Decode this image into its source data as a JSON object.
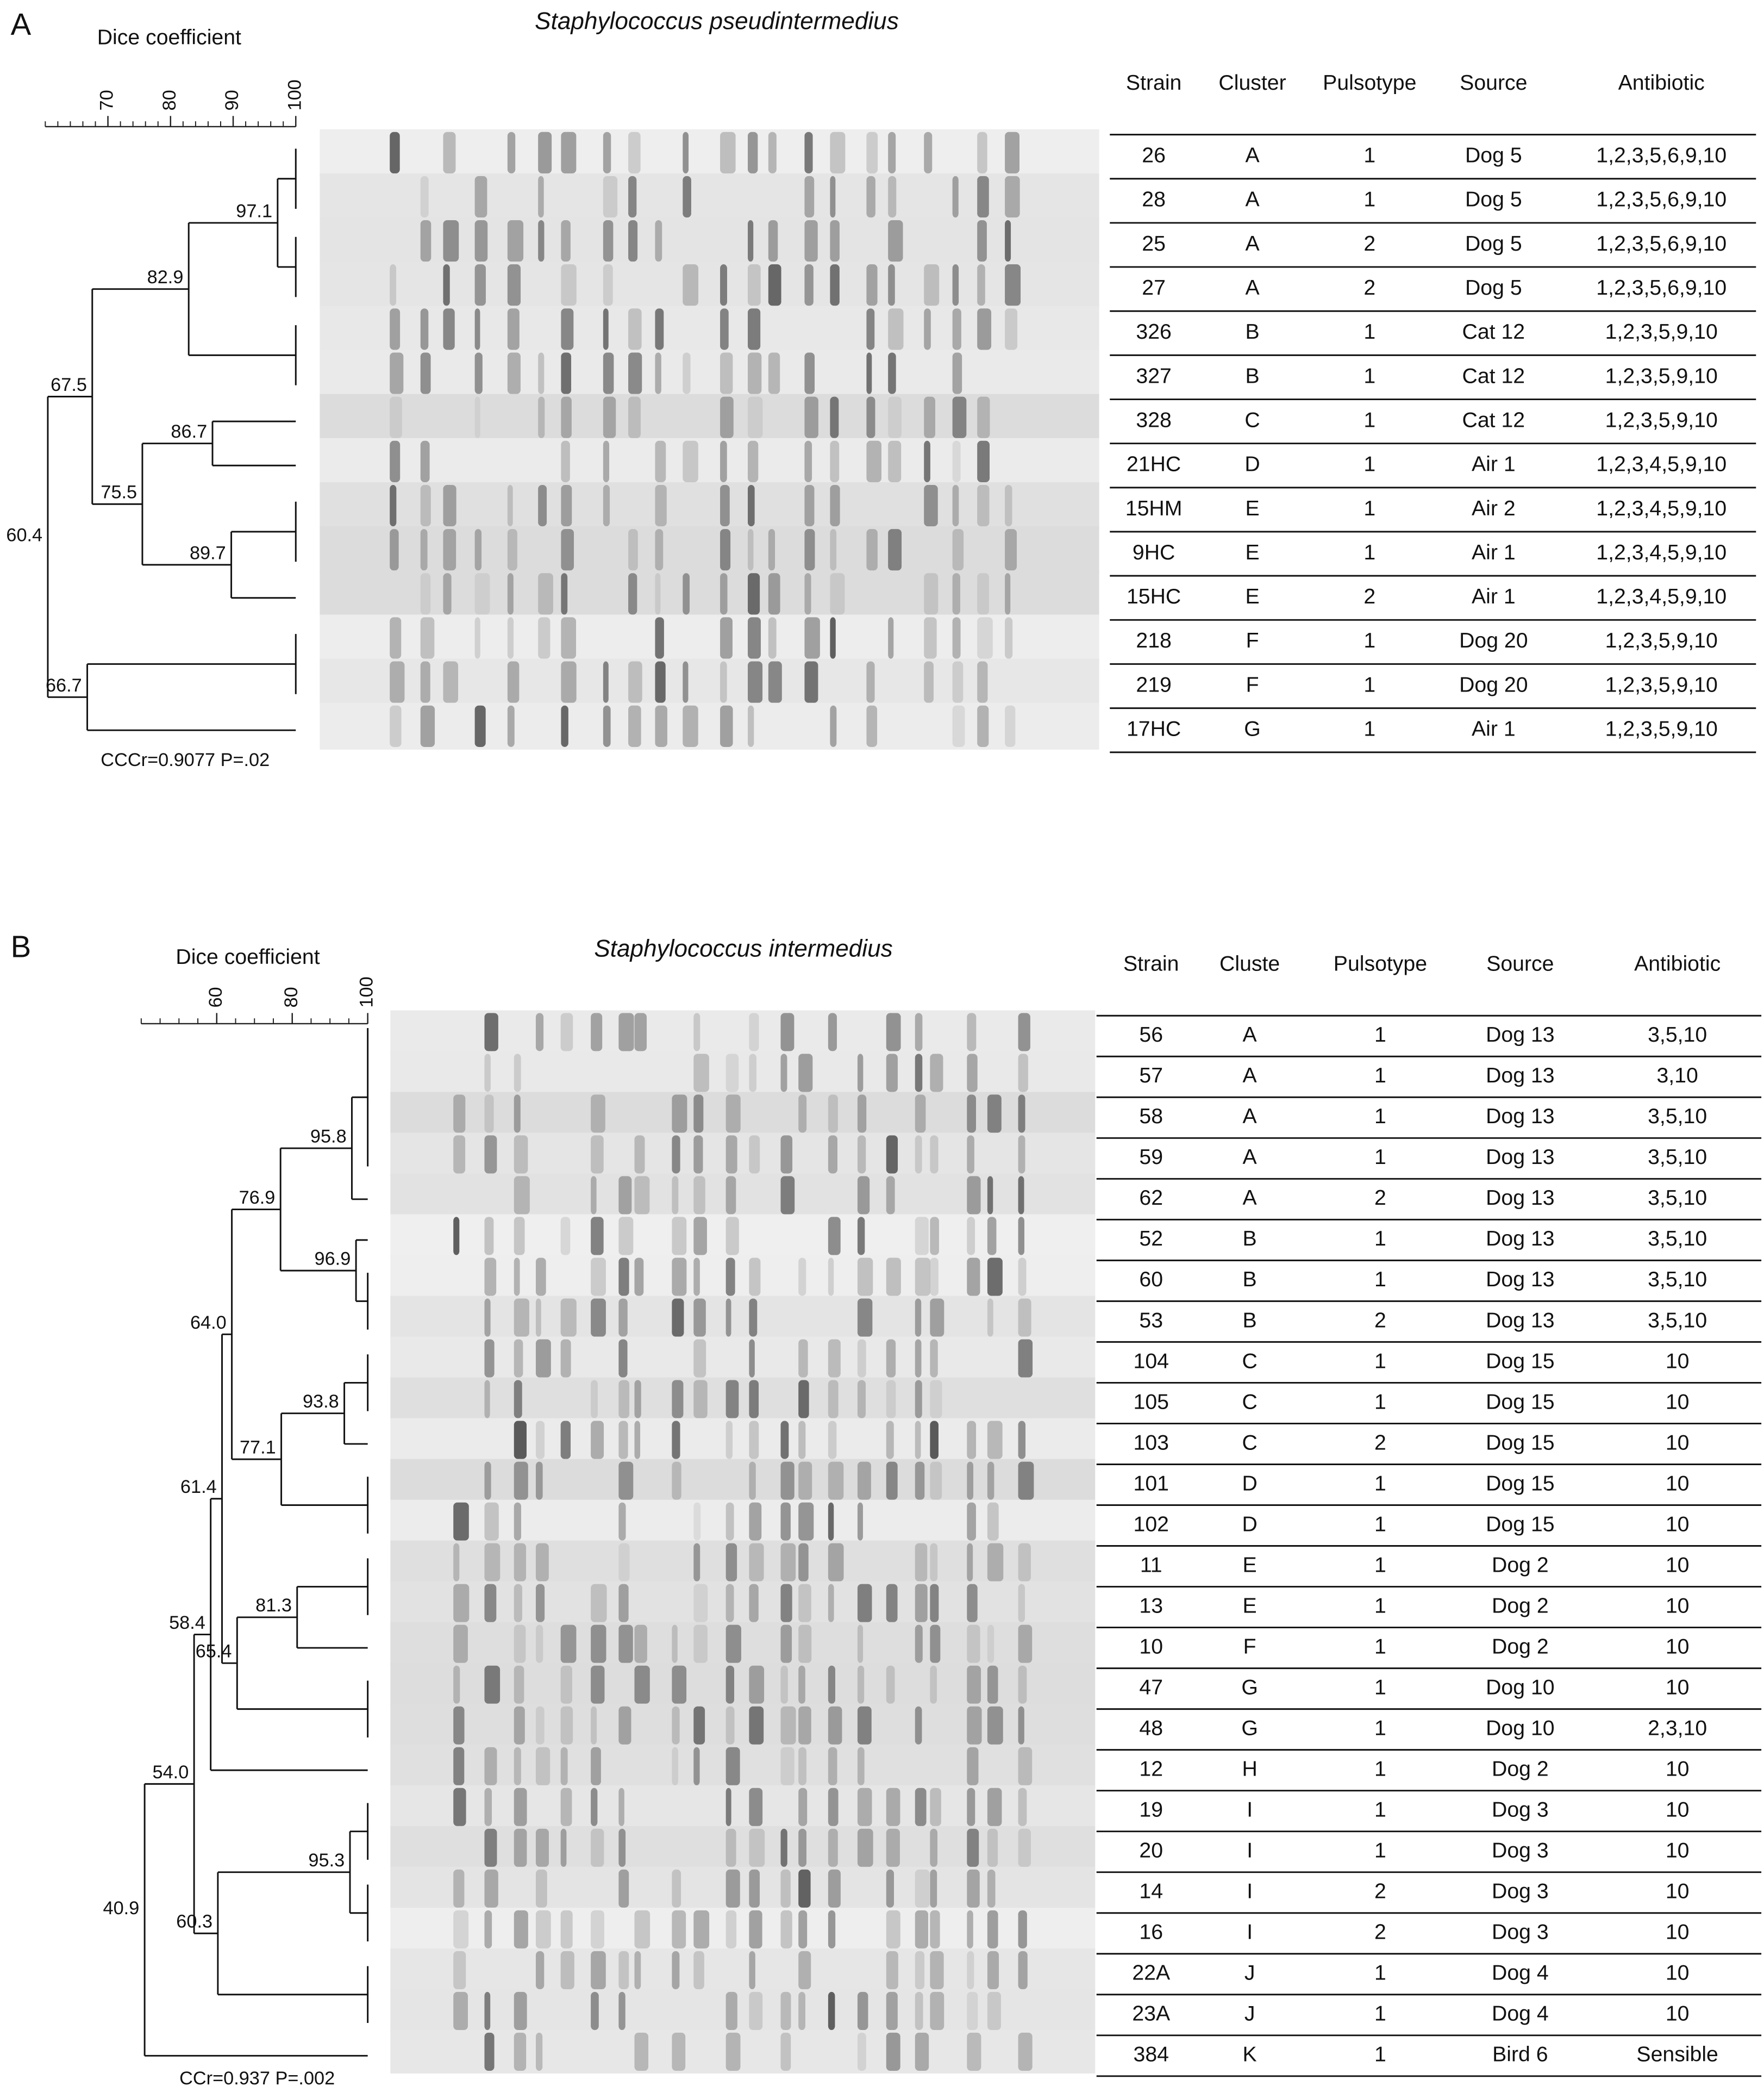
{
  "panels": [
    {
      "label": "A",
      "title": "Staphylococcus pseudintermedius",
      "axis_title": "Dice coefficient",
      "xlim": [
        60,
        100
      ],
      "xticks": [
        70,
        80,
        90,
        100
      ],
      "dendrogram": {
        "value": 60.4,
        "children": [
          {
            "value": 67.5,
            "children": [
              {
                "value": 82.9,
                "children": [
                  {
                    "value": 97.1,
                    "children": [
                      {
                        "leaves": [
                          "26",
                          "28"
                        ]
                      },
                      {
                        "leaves": [
                          "25",
                          "27"
                        ]
                      }
                    ]
                  },
                  {
                    "leaves": [
                      "326",
                      "327"
                    ]
                  }
                ]
              },
              {
                "value": 75.5,
                "children": [
                  {
                    "value": 86.7,
                    "children": [
                      {
                        "leaves": [
                          "328"
                        ]
                      },
                      {
                        "leaves": [
                          "21HC"
                        ]
                      }
                    ]
                  },
                  {
                    "value": 89.7,
                    "children": [
                      {
                        "leaves": [
                          "15HM",
                          "9HC"
                        ]
                      },
                      {
                        "leaves": [
                          "15HC"
                        ]
                      }
                    ]
                  }
                ]
              }
            ]
          },
          {
            "value": 66.7,
            "children": [
              {
                "leaves": [
                  "218",
                  "219"
                ]
              },
              {
                "leaves": [
                  "17HC"
                ]
              }
            ]
          }
        ]
      },
      "note": "CCCr=0.9077 P=.02",
      "table": {
        "header": [
          "Strain",
          "Cluster",
          "Pulsotype",
          "Source",
          "Antibiotic"
        ],
        "rows": [
          [
            "26",
            "A",
            "1",
            "Dog 5",
            "1,2,3,5,6,9,10"
          ],
          [
            "28",
            "A",
            "1",
            "Dog 5",
            "1,2,3,5,6,9,10"
          ],
          [
            "25",
            "A",
            "2",
            "Dog 5",
            "1,2,3,5,6,9,10"
          ],
          [
            "27",
            "A",
            "2",
            "Dog 5",
            "1,2,3,5,6,9,10"
          ],
          [
            "326",
            "B",
            "1",
            "Cat 12",
            "1,2,3,5,9,10"
          ],
          [
            "327",
            "B",
            "1",
            "Cat 12",
            "1,2,3,5,9,10"
          ],
          [
            "328",
            "C",
            "1",
            "Cat 12",
            "1,2,3,5,9,10"
          ],
          [
            "21HC",
            "D",
            "1",
            "Air 1",
            "1,2,3,4,5,9,10"
          ],
          [
            "15HM",
            "E",
            "1",
            "Air 2",
            "1,2,3,4,5,9,10"
          ],
          [
            "9HC",
            "E",
            "1",
            "Air 1",
            "1,2,3,4,5,9,10"
          ],
          [
            "15HC",
            "E",
            "2",
            "Air 1",
            "1,2,3,4,5,9,10"
          ],
          [
            "218",
            "F",
            "1",
            "Dog 20",
            "1,2,3,5,9,10"
          ],
          [
            "219",
            "F",
            "1",
            "Dog 20",
            "1,2,3,5,9,10"
          ],
          [
            "17HC",
            "G",
            "1",
            "Air 1",
            "1,2,3,5,9,10"
          ]
        ]
      }
    },
    {
      "label": "B",
      "title": "Staphylococcus intermedius",
      "axis_title": "Dice coefficient",
      "xlim": [
        40,
        100
      ],
      "xticks": [
        60,
        80,
        100
      ],
      "dendrogram": {
        "value": 40.9,
        "children": [
          {
            "value": {
              "value": 54,
              "label": "54.0"
            },
            "children": [
              {
                "value": 58.4,
                "children": [
                  {
                    "value": 61.4,
                    "children": [
                      {
                        "value": {
                          "value": 64,
                          "label": "64.0"
                        },
                        "children": [
                          {
                            "value": 76.9,
                            "children": [
                              {
                                "value": 95.8,
                                "children": [
                                  {
                                    "leaves": [
                                      "56",
                                      "57",
                                      "58",
                                      "59"
                                    ]
                                  },
                                  {
                                    "leaves": [
                                      "62"
                                    ]
                                  }
                                ]
                              },
                              {
                                "value": 96.9,
                                "children": [
                                  {
                                    "leaves": [
                                      "52"
                                    ]
                                  },
                                  {
                                    "leaves": [
                                      "60",
                                      "53"
                                    ]
                                  }
                                ]
                              }
                            ]
                          },
                          {
                            "value": 77.1,
                            "children": [
                              {
                                "value": 93.8,
                                "children": [
                                  {
                                    "leaves": [
                                      "104",
                                      "105"
                                    ]
                                  },
                                  {
                                    "leaves": [
                                      "103"
                                    ]
                                  }
                                ]
                              },
                              {
                                "leaves": [
                                  "101",
                                  "102"
                                ]
                              }
                            ]
                          }
                        ]
                      },
                      {
                        "value": 65.4,
                        "children": [
                          {
                            "value": 81.3,
                            "children": [
                              {
                                "leaves": [
                                  "11",
                                  "13"
                                ]
                              },
                              {
                                "leaves": [
                                  "10"
                                ]
                              }
                            ]
                          },
                          {
                            "leaves": [
                              "47",
                              "48"
                            ]
                          }
                        ]
                      }
                    ]
                  },
                  {
                    "leaves": [
                      "12"
                    ]
                  }
                ]
              },
              {
                "value": 60.3,
                "children": [
                  {
                    "value": 95.3,
                    "children": [
                      {
                        "leaves": [
                          "19",
                          "20"
                        ]
                      },
                      {
                        "leaves": [
                          "14",
                          "16"
                        ]
                      }
                    ]
                  },
                  {
                    "leaves": [
                      "22A",
                      "23A"
                    ]
                  }
                ]
              }
            ]
          },
          {
            "leaves": [
              "384"
            ]
          }
        ]
      },
      "note": "CCr=0.937 P=.002",
      "table": {
        "header": [
          "Strain",
          "Cluste",
          "Pulsotype",
          "Source",
          "Antibiotic"
        ],
        "rows": [
          [
            "56",
            "A",
            "1",
            "Dog 13",
            "3,5,10"
          ],
          [
            "57",
            "A",
            "1",
            "Dog 13",
            "3,10"
          ],
          [
            "58",
            "A",
            "1",
            "Dog 13",
            "3,5,10"
          ],
          [
            "59",
            "A",
            "1",
            "Dog 13",
            "3,5,10"
          ],
          [
            "62",
            "A",
            "2",
            "Dog 13",
            "3,5,10"
          ],
          [
            "52",
            "B",
            "1",
            "Dog 13",
            "3,5,10"
          ],
          [
            "60",
            "B",
            "1",
            "Dog 13",
            "3,5,10"
          ],
          [
            "53",
            "B",
            "2",
            "Dog 13",
            "3,5,10"
          ],
          [
            "104",
            "C",
            "1",
            "Dog 15",
            "10"
          ],
          [
            "105",
            "C",
            "1",
            "Dog 15",
            "10"
          ],
          [
            "103",
            "C",
            "2",
            "Dog 15",
            "10"
          ],
          [
            "101",
            "D",
            "1",
            "Dog 15",
            "10"
          ],
          [
            "102",
            "D",
            "1",
            "Dog 15",
            "10"
          ],
          [
            "11",
            "E",
            "1",
            "Dog 2",
            "10"
          ],
          [
            "13",
            "E",
            "1",
            "Dog 2",
            "10"
          ],
          [
            "10",
            "F",
            "1",
            "Dog 2",
            "10"
          ],
          [
            "47",
            "G",
            "1",
            "Dog 10",
            "10"
          ],
          [
            "48",
            "G",
            "1",
            "Dog 10",
            "2,3,10"
          ],
          [
            "12",
            "H",
            "1",
            "Dog 2",
            "10"
          ],
          [
            "19",
            "I",
            "1",
            "Dog 3",
            "10"
          ],
          [
            "20",
            "I",
            "1",
            "Dog 3",
            "10"
          ],
          [
            "14",
            "I",
            "2",
            "Dog 3",
            "10"
          ],
          [
            "16",
            "I",
            "2",
            "Dog 3",
            "10"
          ],
          [
            "22A",
            "J",
            "1",
            "Dog 4",
            "10"
          ],
          [
            "23A",
            "J",
            "1",
            "Dog 4",
            "10"
          ],
          [
            "384",
            "K",
            "1",
            "Bird 6",
            "Sensible"
          ]
        ]
      }
    }
  ]
}
